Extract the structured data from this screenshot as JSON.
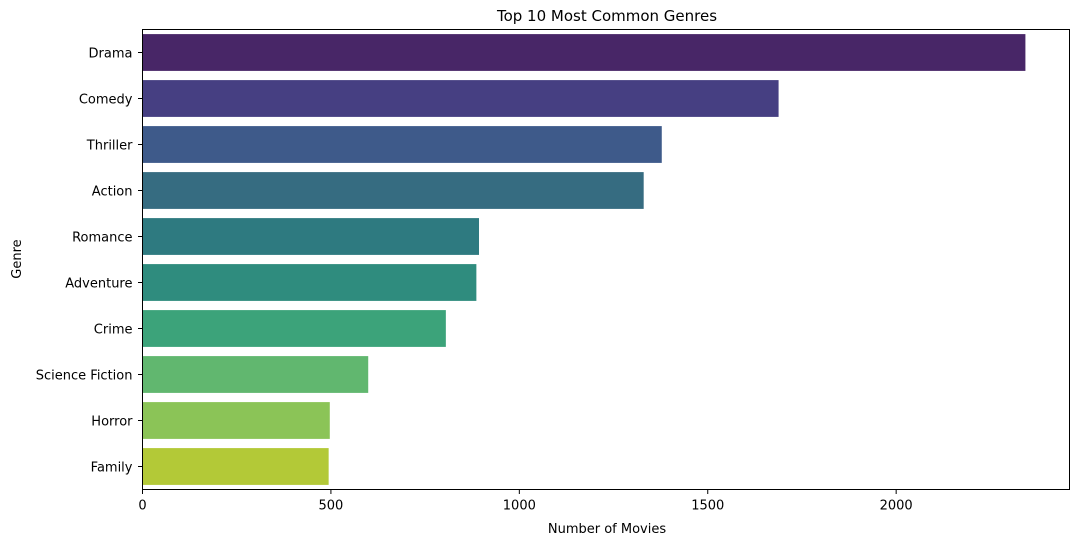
{
  "chart_data": {
    "type": "bar",
    "orientation": "horizontal",
    "title": "Top 10 Most Common Genres",
    "xlabel": "Number of Movies",
    "ylabel": "Genre",
    "categories": [
      "Drama",
      "Comedy",
      "Thriller",
      "Action",
      "Romance",
      "Adventure",
      "Crime",
      "Science Fiction",
      "Horror",
      "Family"
    ],
    "values": [
      2343,
      1688,
      1378,
      1330,
      893,
      886,
      805,
      599,
      497,
      494
    ],
    "xlim": [
      0,
      2460
    ],
    "xticks": [
      0,
      500,
      1000,
      1500,
      2000
    ],
    "grid": false,
    "legend": "none",
    "colors": [
      "#482667",
      "#463f82",
      "#3e5a8a",
      "#366c81",
      "#2e7a80",
      "#2f8c7e",
      "#3ca37a",
      "#61b76f",
      "#8bc457",
      "#b3c937"
    ]
  }
}
